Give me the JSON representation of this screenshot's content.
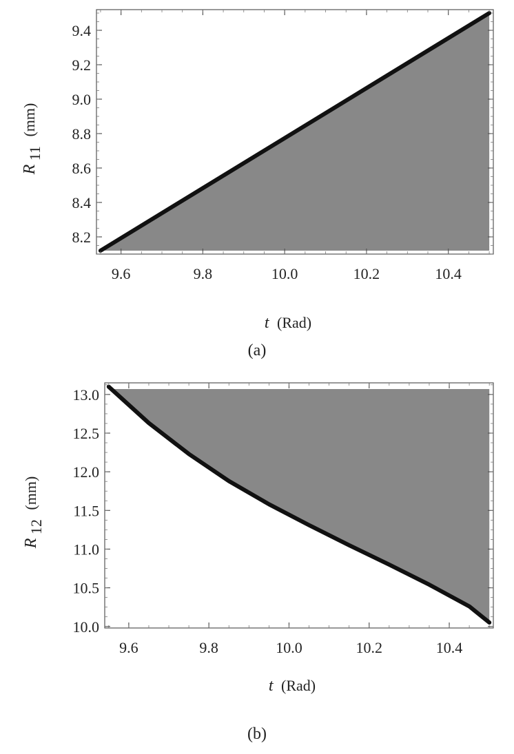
{
  "chart_data": [
    {
      "type": "area",
      "panel": "a",
      "caption": "(a)",
      "x_symbol": "t",
      "x_unit": "(Rad)",
      "y_symbol": "R",
      "y_subscript": "11",
      "y_unit": "(mm)",
      "xlim": [
        9.54,
        10.51
      ],
      "ylim": [
        8.1,
        9.52
      ],
      "xticks": [
        9.6,
        9.8,
        10.0,
        10.2,
        10.4
      ],
      "xtick_labels": [
        "9.6",
        "9.8",
        "10.0",
        "10.2",
        "10.4"
      ],
      "yticks": [
        8.2,
        8.4,
        8.6,
        8.8,
        9.0,
        9.2,
        9.4
      ],
      "ytick_labels": [
        "8.2",
        "8.4",
        "8.6",
        "8.8",
        "9.0",
        "9.2",
        "9.4"
      ],
      "curve": {
        "x": [
          9.55,
          10.5
        ],
        "y": [
          8.12,
          9.5
        ]
      },
      "shaded_region": "below-curve",
      "region_floor": 8.12
    },
    {
      "type": "area",
      "panel": "b",
      "caption": "(b)",
      "x_symbol": "t",
      "x_unit": "(Rad)",
      "y_symbol": "R",
      "y_subscript": "12",
      "y_unit": "(mm)",
      "xlim": [
        9.54,
        10.51
      ],
      "ylim": [
        9.98,
        13.15
      ],
      "xticks": [
        9.6,
        9.8,
        10.0,
        10.2,
        10.4
      ],
      "xtick_labels": [
        "9.6",
        "9.8",
        "10.0",
        "10.2",
        "10.4"
      ],
      "yticks": [
        10.0,
        10.5,
        11.0,
        11.5,
        12.0,
        12.5,
        13.0
      ],
      "ytick_labels": [
        "10.0",
        "10.5",
        "11.0",
        "11.5",
        "12.0",
        "12.5",
        "13.0"
      ],
      "curve": {
        "x": [
          9.55,
          9.65,
          9.75,
          9.85,
          9.95,
          10.05,
          10.15,
          10.25,
          10.35,
          10.45,
          10.5
        ],
        "y": [
          13.1,
          12.63,
          12.23,
          11.88,
          11.58,
          11.31,
          11.05,
          10.8,
          10.54,
          10.26,
          10.05
        ]
      },
      "shaded_region": "above-curve",
      "region_ceiling": 13.07
    }
  ]
}
